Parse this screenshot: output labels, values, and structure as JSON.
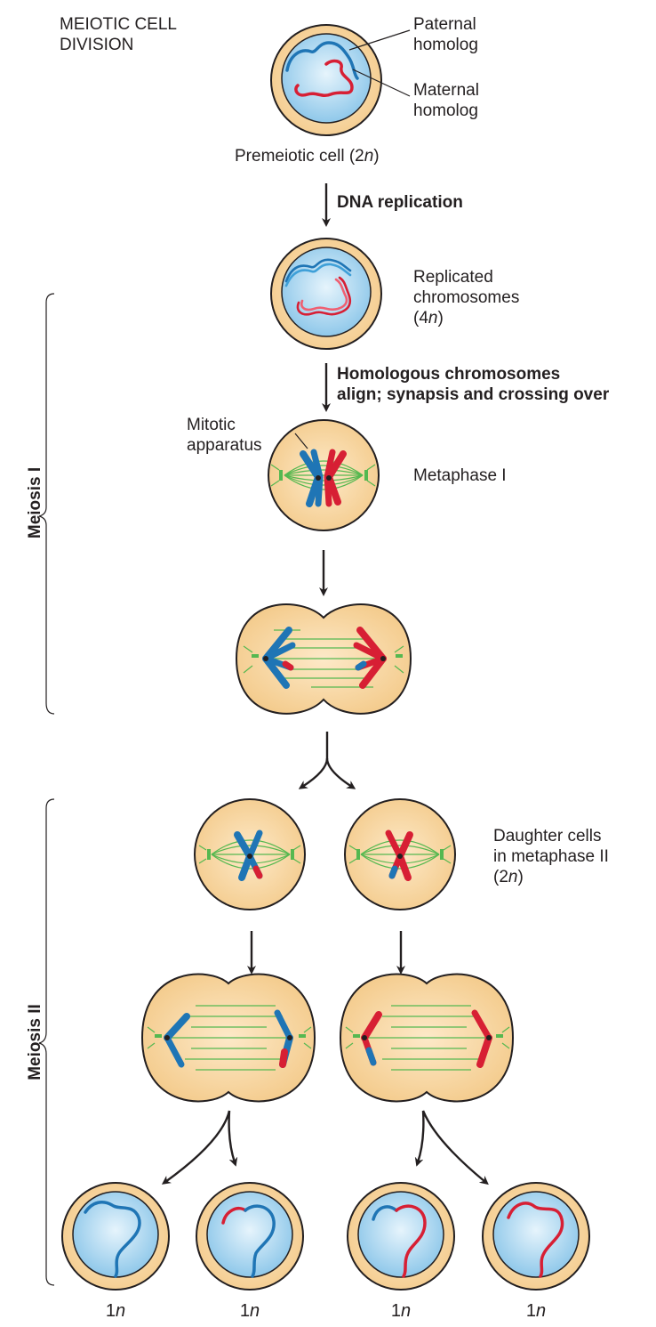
{
  "title_line1": "MEIOTIC CELL",
  "title_line2": "DIVISION",
  "labels": {
    "paternal_line1": "Paternal",
    "paternal_line2": "homolog",
    "maternal_line1": "Maternal",
    "maternal_line2": "homolog",
    "premeiotic_prefix": "Premeiotic cell (2",
    "premeiotic_n": "n",
    "premeiotic_suffix": ")",
    "dna_replication": "DNA replication",
    "replicated_line1": "Replicated",
    "replicated_line2": "chromosomes",
    "replicated_prefix": "(4",
    "replicated_n": "n",
    "replicated_suffix": ")",
    "homologous_line1": "Homologous chromosomes",
    "homologous_line2": "align; synapsis and crossing over",
    "mitotic_line1": "Mitotic",
    "mitotic_line2": "apparatus",
    "metaphase_i": "Metaphase I",
    "daughter_line1": "Daughter cells",
    "daughter_line2": "in metaphase II",
    "daughter_prefix": "(2",
    "daughter_n": "n",
    "daughter_suffix": ")",
    "meiosis_i": "Meiosis I",
    "meiosis_ii": "Meiosis II",
    "ploidy_number": "1",
    "ploidy_n": "n"
  },
  "colors": {
    "cell_fill": "#f9d9a8",
    "cell_stroke": "#231f20",
    "nucleus_fill": "#bfe0f4",
    "paternal": "#1f75b5",
    "maternal": "#d71f34",
    "spindle": "#55b850",
    "arrow": "#231f20"
  }
}
